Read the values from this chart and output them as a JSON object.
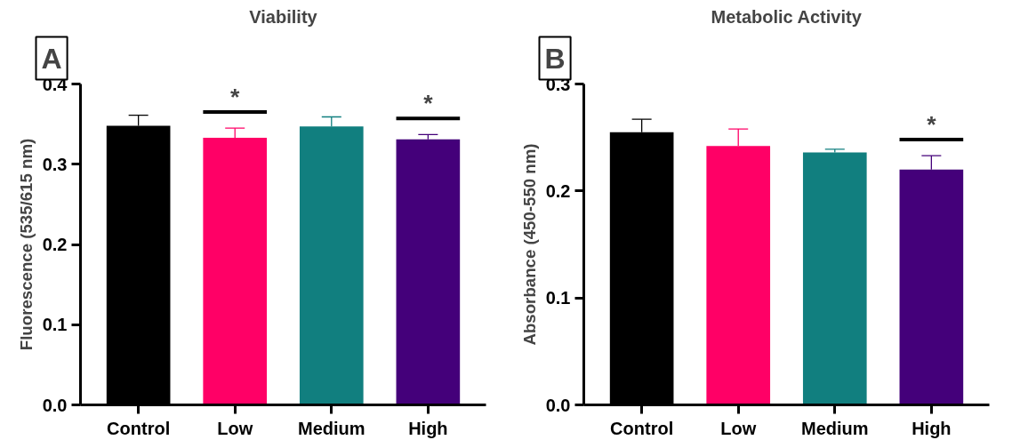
{
  "chart_data": [
    {
      "type": "bar",
      "title": "Viability",
      "ylabel": "Fluorescence (535/615 nm)",
      "categories": [
        "Control",
        "Low",
        "Medium",
        "High"
      ],
      "values": [
        0.348,
        0.333,
        0.347,
        0.331
      ],
      "colors": [
        "#000000",
        "#ff0066",
        "#117f7f",
        "#44007a"
      ],
      "errors": [
        [
          0.348,
          0.361
        ],
        [
          0.333,
          0.345
        ],
        [
          0.347,
          0.359
        ],
        [
          0.331,
          0.337
        ]
      ],
      "ylim": [
        0,
        0.4
      ],
      "yticks": [
        {
          "value": 0,
          "label": "0.0"
        },
        0.1,
        0.2,
        0.3,
        0.4
      ],
      "grid": false,
      "value_labels": [
        null,
        "*",
        null,
        "*"
      ],
      "annotations": [
        "A"
      ]
    },
    {
      "type": "bar",
      "title": "Metabolic Activity",
      "ylabel": "Absorbance (450-550 nm)",
      "categories": [
        "Control",
        "Low",
        "Medium",
        "High"
      ],
      "values": [
        0.255,
        0.242,
        0.236,
        0.22
      ],
      "colors": [
        "#000000",
        "#ff0066",
        "#117f7f",
        "#44007a"
      ],
      "errors": [
        [
          0.255,
          0.267
        ],
        [
          0.242,
          0.258
        ],
        [
          0.236,
          0.239
        ],
        [
          0.22,
          0.233
        ]
      ],
      "ylim": [
        0,
        0.3
      ],
      "yticks": [
        {
          "value": 0,
          "label": "0.0"
        },
        0.1,
        0.2,
        0.3
      ],
      "grid": false,
      "value_labels": [
        null,
        null,
        null,
        "*"
      ],
      "annotations": [
        "B"
      ]
    }
  ]
}
